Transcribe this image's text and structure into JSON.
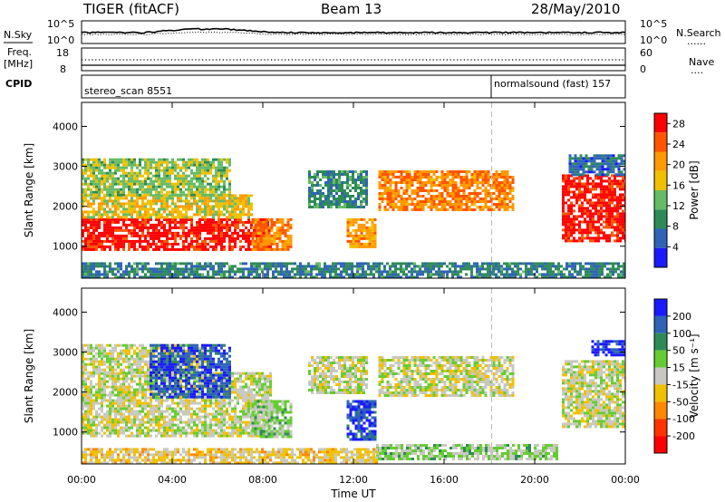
{
  "header": {
    "station": "TIGER (fitACF)",
    "beam": "Beam 13",
    "date": "28/May/2010"
  },
  "top_panels": {
    "noise": {
      "left_label": "N.Sky",
      "left_ticks": [
        "10^5",
        "10^0"
      ],
      "right_ticks": [
        "10^5",
        "10^0"
      ],
      "right_label": "N.Search",
      "right_line": "......"
    },
    "freq": {
      "left_label_1": "Freq.",
      "left_label_2": "[MHz]",
      "left_ticks": [
        "18",
        "8"
      ],
      "right_ticks": [
        "60",
        "0"
      ],
      "right_label": "Nave",
      "right_line": "....",
      "cpid_label": "CPID"
    },
    "cpid": {
      "program_1": "stereo_scan 8551",
      "program_2": "normalsound (fast) 157"
    }
  },
  "chart_data": [
    {
      "type": "heatmap",
      "title": "",
      "xlabel": "Time UT",
      "ylabel": "Slant Range [km]",
      "xlim": [
        0,
        24
      ],
      "ylim": [
        200,
        4600
      ],
      "x_ticks": [
        "00:00",
        "04:00",
        "08:00",
        "12:00",
        "16:00",
        "20:00",
        "00:00"
      ],
      "y_ticks": [
        "1000",
        "2000",
        "3000",
        "4000"
      ],
      "colorbar_label": "Power [dB]",
      "colorbar_ticks": [
        "4",
        "8",
        "12",
        "16",
        "20",
        "24",
        "28"
      ],
      "colorbar_range": [
        0,
        30
      ],
      "colors": [
        "#1a1aff",
        "#2e63b8",
        "#2e8b57",
        "#66bb66",
        "#f0c000",
        "#ff9900",
        "#ff5500",
        "#ff0000"
      ],
      "mode_change_time": 18.1,
      "regions": [
        {
          "t0": 0.0,
          "t1": 8.3,
          "r0": 900,
          "r1": 1700,
          "v": 28
        },
        {
          "t0": 0.0,
          "t1": 7.5,
          "r0": 1700,
          "r1": 2300,
          "v": 17
        },
        {
          "t0": 0.0,
          "t1": 6.5,
          "r0": 2300,
          "r1": 3200,
          "v": 14
        },
        {
          "t0": 7.5,
          "t1": 9.3,
          "r0": 900,
          "r1": 1700,
          "v": 22
        },
        {
          "t0": 10.0,
          "t1": 12.6,
          "r0": 2000,
          "r1": 2900,
          "v": 9
        },
        {
          "t0": 11.7,
          "t1": 13.0,
          "r0": 1000,
          "r1": 1700,
          "v": 20
        },
        {
          "t0": 13.1,
          "t1": 19.0,
          "r0": 1900,
          "r1": 2900,
          "v": 22
        },
        {
          "t0": 21.2,
          "t1": 24.0,
          "r0": 1100,
          "r1": 2800,
          "v": 28
        },
        {
          "t0": 21.5,
          "t1": 24.0,
          "r0": 2800,
          "r1": 3300,
          "v": 6
        },
        {
          "t0": 0.0,
          "t1": 24.0,
          "r0": 250,
          "r1": 600,
          "v": 8
        }
      ]
    },
    {
      "type": "heatmap",
      "title": "",
      "xlabel": "Time UT",
      "ylabel": "Slant Range [km]",
      "xlim": [
        0,
        24
      ],
      "ylim": [
        200,
        4600
      ],
      "x_ticks": [
        "00:00",
        "04:00",
        "08:00",
        "12:00",
        "16:00",
        "20:00",
        "00:00"
      ],
      "y_ticks": [
        "1000",
        "2000",
        "3000",
        "4000"
      ],
      "colorbar_label": "Velocity [m s⁻¹]",
      "colorbar_ticks": [
        "200",
        "100",
        "50",
        "15",
        "-15",
        "-50",
        "-100",
        "-200"
      ],
      "colorbar_range": [
        -250,
        250
      ],
      "colors": [
        "#1a1aff",
        "#2e63b8",
        "#2e8b57",
        "#66cc33",
        "#c8c8c0",
        "#f0c000",
        "#ff8800",
        "#ff3300",
        "#ff0000"
      ],
      "mode_change_time": 18.1,
      "regions": [
        {
          "t0": 0.0,
          "t1": 8.3,
          "r0": 900,
          "r1": 2500,
          "v": 0
        },
        {
          "t0": 0.0,
          "t1": 5.5,
          "r0": 2500,
          "r1": 3200,
          "v": 0
        },
        {
          "t0": 3.0,
          "t1": 6.5,
          "r0": 1900,
          "r1": 3200,
          "v": 180
        },
        {
          "t0": 7.5,
          "t1": 9.3,
          "r0": 900,
          "r1": 1800,
          "v": 40
        },
        {
          "t0": 10.0,
          "t1": 12.6,
          "r0": 2000,
          "r1": 2900,
          "v": 0
        },
        {
          "t0": 11.7,
          "t1": 13.0,
          "r0": 800,
          "r1": 1800,
          "v": 190
        },
        {
          "t0": 13.1,
          "t1": 19.0,
          "r0": 1900,
          "r1": 2900,
          "v": 0
        },
        {
          "t0": 21.2,
          "t1": 24.0,
          "r0": 1100,
          "r1": 2800,
          "v": 0
        },
        {
          "t0": 22.5,
          "t1": 24.0,
          "r0": 2900,
          "r1": 3300,
          "v": 200
        },
        {
          "t0": 13.0,
          "t1": 21.0,
          "r0": 300,
          "r1": 700,
          "v": 35
        },
        {
          "t0": 0.0,
          "t1": 13.0,
          "r0": 250,
          "r1": 600,
          "v": -40
        }
      ]
    }
  ]
}
